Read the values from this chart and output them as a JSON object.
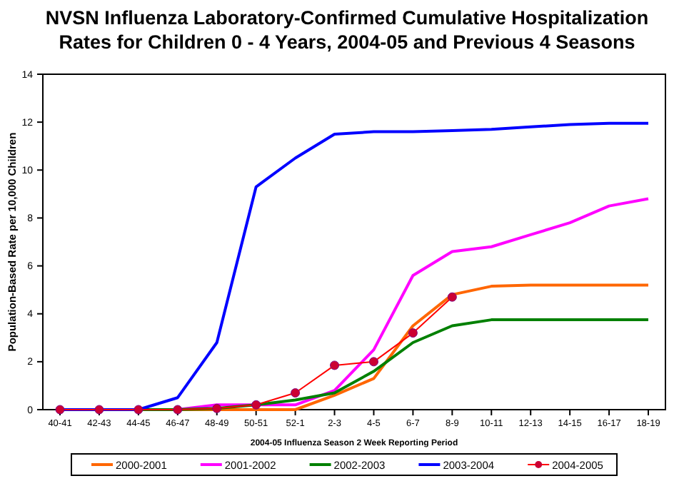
{
  "chart_data": {
    "type": "line",
    "title": "NVSN Influenza Laboratory-Confirmed Cumulative Hospitalization Rates for Children 0 - 4 Years, 2004-05 and Previous 4 Seasons",
    "xlabel": "2004-05 Influenza Season 2 Week Reporting Period",
    "ylabel": "Population-Based Rate per 10,000 Children",
    "categories": [
      "40-41",
      "42-43",
      "44-45",
      "46-47",
      "48-49",
      "50-51",
      "52-1",
      "2-3",
      "4-5",
      "6-7",
      "8-9",
      "10-11",
      "12-13",
      "14-15",
      "16-17",
      "18-19"
    ],
    "ylim": [
      0,
      14
    ],
    "yticks": [
      0,
      2,
      4,
      6,
      8,
      10,
      12,
      14
    ],
    "grid": false,
    "legend": "bottom",
    "series": [
      {
        "name": "2000-2001",
        "color": "#ff6600",
        "marker": "none",
        "values": [
          null,
          null,
          0,
          0,
          0,
          0,
          0,
          0.6,
          1.3,
          3.5,
          4.8,
          5.15,
          5.2,
          5.2,
          5.2,
          5.2
        ]
      },
      {
        "name": "2001-2002",
        "color": "#ff00ff",
        "marker": "none",
        "values": [
          null,
          null,
          0,
          0,
          0.2,
          0.2,
          0.2,
          0.8,
          2.5,
          5.6,
          6.6,
          6.8,
          7.3,
          7.8,
          8.5,
          8.8
        ]
      },
      {
        "name": "2002-2003",
        "color": "#008000",
        "marker": "none",
        "values": [
          0,
          0,
          0,
          0,
          0.05,
          0.2,
          0.4,
          0.7,
          1.6,
          2.8,
          3.5,
          3.75,
          3.75,
          3.75,
          3.75,
          3.75
        ]
      },
      {
        "name": "2003-2004",
        "color": "#0000ff",
        "marker": "none",
        "values": [
          0,
          0,
          0,
          0.5,
          2.8,
          9.3,
          10.5,
          11.5,
          11.6,
          11.6,
          11.65,
          11.7,
          11.8,
          11.9,
          11.95,
          11.95
        ]
      },
      {
        "name": "2004-2005",
        "color": "#ff0000",
        "marker": "circle",
        "values": [
          0,
          0,
          0,
          0,
          0.05,
          0.2,
          0.7,
          1.85,
          2.0,
          3.2,
          4.7,
          null,
          null,
          null,
          null,
          null
        ]
      }
    ]
  }
}
